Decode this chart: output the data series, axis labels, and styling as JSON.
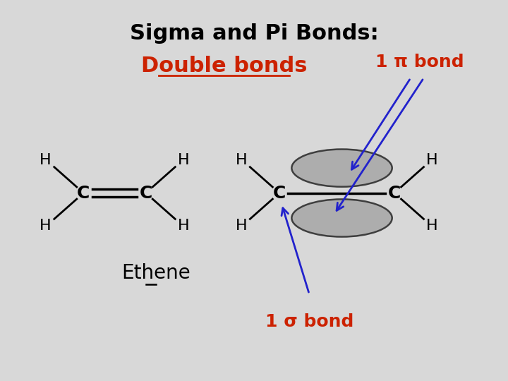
{
  "background_color": "#d8d8d8",
  "title_line1": "Sigma and Pi Bonds:",
  "title_line2": "Double bonds",
  "title_color": "#000000",
  "subtitle_color": "#cc2200",
  "ethene_label": "Ethene",
  "sigma_label": "1 σ bond",
  "pi_label": "1 π bond",
  "label_color": "#cc2200",
  "arrow_color": "#2222cc",
  "atom_color": "#000000",
  "bond_color": "#000000",
  "orbital_color": "#aaaaaa",
  "orbital_edge": "#333333"
}
